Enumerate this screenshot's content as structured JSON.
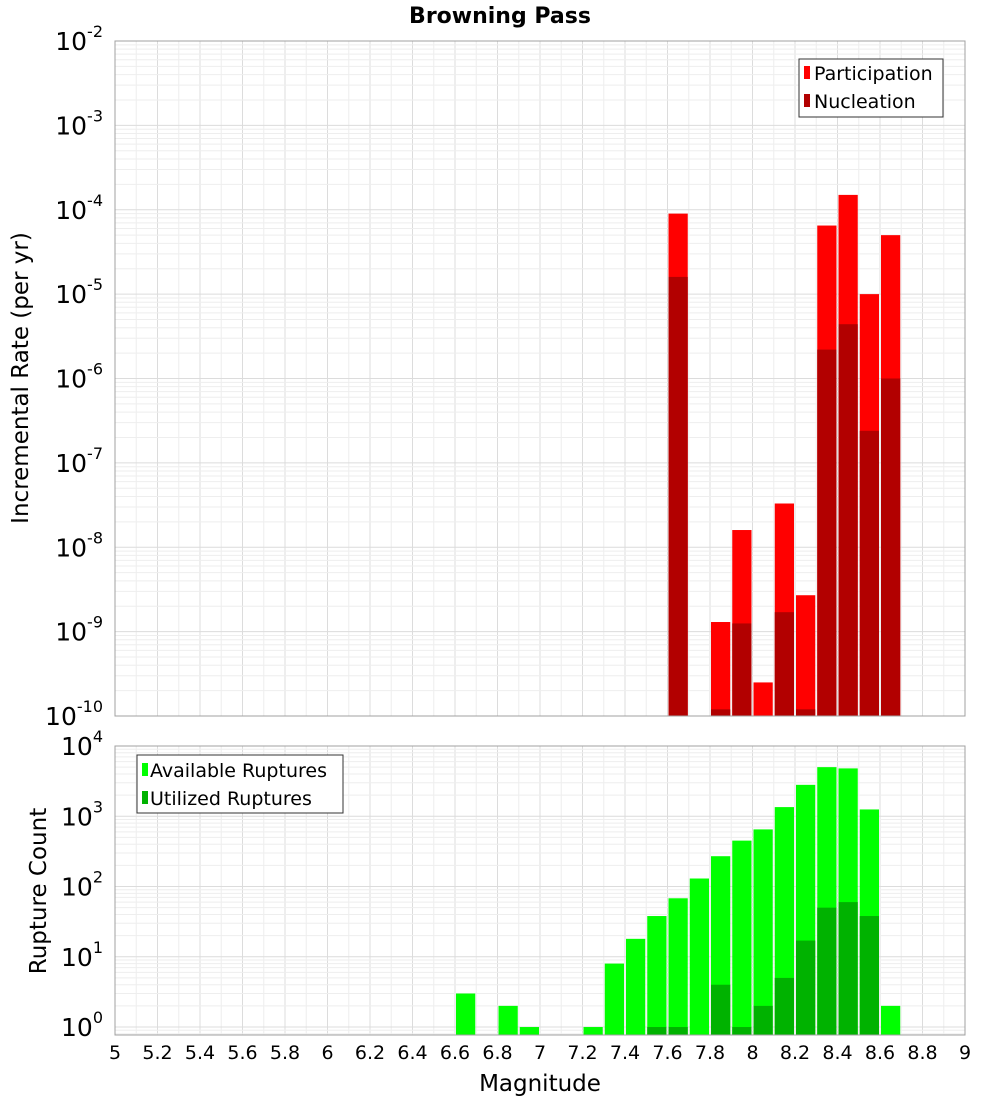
{
  "chart_data": [
    {
      "type": "bar",
      "title": "Browning Pass",
      "xlabel": "",
      "ylabel": "Incremental Rate (per yr)",
      "yscale": "log",
      "ylim": [
        1e-10,
        0.01
      ],
      "xlim": [
        5,
        9
      ],
      "bar_width": 0.1,
      "grid": true,
      "legend_position": "top-right",
      "series": [
        {
          "name": "Participation",
          "color": "#ff0000",
          "x": [
            7.65,
            7.85,
            7.95,
            8.05,
            8.15,
            8.25,
            8.35,
            8.45,
            8.55,
            8.65
          ],
          "values": [
            9e-05,
            1.3e-09,
            1.6e-08,
            2.5e-10,
            3.3e-08,
            2.7e-09,
            6.5e-05,
            0.00015,
            1e-05,
            5e-05
          ]
        },
        {
          "name": "Nucleation",
          "color": "#b20000",
          "x": [
            7.65,
            7.85,
            7.95,
            8.05,
            8.15,
            8.25,
            8.35,
            8.45,
            8.55,
            8.65
          ],
          "values": [
            1.6e-05,
            1.2e-10,
            1.25e-09,
            null,
            1.7e-09,
            1.2e-10,
            2.2e-06,
            4.4e-06,
            2.4e-07,
            1e-06
          ]
        }
      ],
      "y_ticks": [
        {
          "base": "10",
          "exp": "-10",
          "value": 1e-10
        },
        {
          "base": "10",
          "exp": "-9",
          "value": 1e-09
        },
        {
          "base": "10",
          "exp": "-8",
          "value": 1e-08
        },
        {
          "base": "10",
          "exp": "-7",
          "value": 1e-07
        },
        {
          "base": "10",
          "exp": "-6",
          "value": 1e-06
        },
        {
          "base": "10",
          "exp": "-5",
          "value": 1e-05
        },
        {
          "base": "10",
          "exp": "-4",
          "value": 0.0001
        },
        {
          "base": "10",
          "exp": "-3",
          "value": 0.001
        },
        {
          "base": "10",
          "exp": "-2",
          "value": 0.01
        }
      ]
    },
    {
      "type": "bar",
      "title": "",
      "xlabel": "Magnitude",
      "ylabel": "Rupture Count",
      "yscale": "log",
      "ylim": [
        0.77,
        10000
      ],
      "xlim": [
        5,
        9
      ],
      "bar_width": 0.1,
      "grid": true,
      "legend_position": "top-left",
      "series": [
        {
          "name": "Available Ruptures",
          "color": "#00ff00",
          "x": [
            6.65,
            6.85,
            6.95,
            7.25,
            7.35,
            7.45,
            7.55,
            7.65,
            7.75,
            7.85,
            7.95,
            8.05,
            8.15,
            8.25,
            8.35,
            8.45,
            8.55,
            8.65
          ],
          "values": [
            3,
            2,
            1,
            1,
            8,
            18,
            38,
            68,
            130,
            270,
            450,
            650,
            1350,
            2800,
            5000,
            4800,
            1250,
            2
          ]
        },
        {
          "name": "Utilized Ruptures",
          "color": "#00b200",
          "x": [
            7.55,
            7.65,
            7.85,
            7.95,
            8.05,
            8.15,
            8.25,
            8.35,
            8.45,
            8.55
          ],
          "values": [
            1,
            1,
            4,
            1,
            2,
            5,
            17,
            50,
            60,
            38
          ]
        }
      ],
      "x_ticks": [
        "5",
        "5.2",
        "5.4",
        "5.6",
        "5.8",
        "6",
        "6.2",
        "6.4",
        "6.6",
        "6.8",
        "7",
        "7.2",
        "7.4",
        "7.6",
        "7.8",
        "8",
        "8.2",
        "8.4",
        "8.6",
        "8.8",
        "9"
      ],
      "y_ticks": [
        {
          "base": "10",
          "exp": "0",
          "value": 1
        },
        {
          "base": "10",
          "exp": "1",
          "value": 10
        },
        {
          "base": "10",
          "exp": "2",
          "value": 100
        },
        {
          "base": "10",
          "exp": "3",
          "value": 1000
        },
        {
          "base": "10",
          "exp": "4",
          "value": 10000
        }
      ]
    }
  ]
}
